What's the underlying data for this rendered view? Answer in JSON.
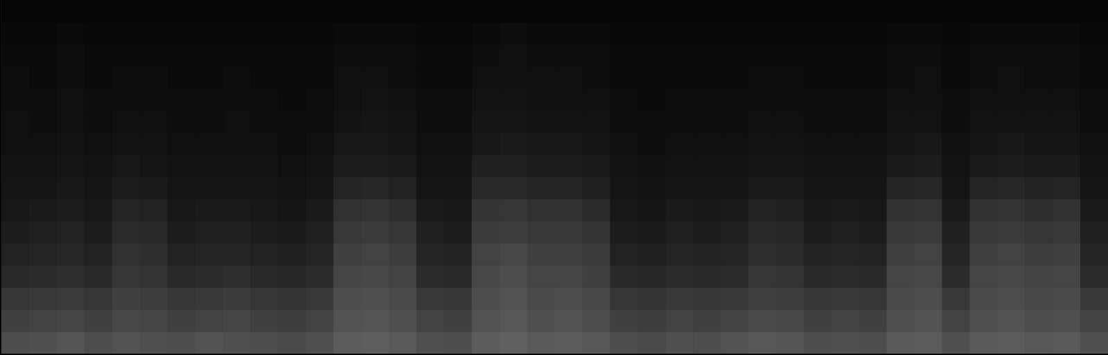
{
  "chart_data": {
    "type": "heatmap",
    "xlim": [
      0,
      40
    ],
    "ylim": [
      0,
      16
    ],
    "zlim": [
      0,
      1
    ],
    "color": "#ffffff",
    "grid": false,
    "tick_labels": false,
    "cells": [
      [
        0.3,
        0.31,
        0.33,
        0.3,
        0.32,
        0.31,
        0.3,
        0.32,
        0.31,
        0.3,
        0.29,
        0.31,
        0.36,
        0.37,
        0.35,
        0.31,
        0.3,
        0.36,
        0.38,
        0.35,
        0.36,
        0.34,
        0.3,
        0.29,
        0.31,
        0.3,
        0.32,
        0.34,
        0.33,
        0.3,
        0.31,
        0.3,
        0.35,
        0.36,
        0.31,
        0.35,
        0.36,
        0.34,
        0.35,
        0.31
      ],
      [
        0.25,
        0.26,
        0.27,
        0.25,
        0.28,
        0.27,
        0.25,
        0.26,
        0.27,
        0.25,
        0.24,
        0.26,
        0.32,
        0.33,
        0.31,
        0.26,
        0.25,
        0.32,
        0.34,
        0.31,
        0.32,
        0.3,
        0.25,
        0.24,
        0.26,
        0.25,
        0.26,
        0.29,
        0.28,
        0.25,
        0.26,
        0.25,
        0.31,
        0.32,
        0.26,
        0.31,
        0.32,
        0.3,
        0.31,
        0.26
      ],
      [
        0.21,
        0.22,
        0.23,
        0.21,
        0.25,
        0.24,
        0.21,
        0.22,
        0.23,
        0.21,
        0.2,
        0.22,
        0.3,
        0.31,
        0.29,
        0.22,
        0.21,
        0.3,
        0.32,
        0.29,
        0.3,
        0.28,
        0.21,
        0.2,
        0.22,
        0.21,
        0.22,
        0.25,
        0.24,
        0.21,
        0.22,
        0.21,
        0.29,
        0.3,
        0.22,
        0.29,
        0.3,
        0.28,
        0.29,
        0.22
      ],
      [
        0.16,
        0.17,
        0.18,
        0.16,
        0.21,
        0.2,
        0.16,
        0.17,
        0.18,
        0.16,
        0.15,
        0.17,
        0.27,
        0.28,
        0.26,
        0.17,
        0.16,
        0.28,
        0.3,
        0.27,
        0.27,
        0.25,
        0.16,
        0.15,
        0.17,
        0.16,
        0.17,
        0.21,
        0.2,
        0.16,
        0.17,
        0.16,
        0.27,
        0.28,
        0.17,
        0.27,
        0.28,
        0.26,
        0.27,
        0.17
      ],
      [
        0.13,
        0.14,
        0.15,
        0.13,
        0.19,
        0.18,
        0.13,
        0.14,
        0.14,
        0.13,
        0.12,
        0.14,
        0.25,
        0.26,
        0.24,
        0.14,
        0.13,
        0.26,
        0.28,
        0.25,
        0.25,
        0.23,
        0.13,
        0.12,
        0.14,
        0.13,
        0.14,
        0.18,
        0.17,
        0.13,
        0.14,
        0.13,
        0.25,
        0.26,
        0.14,
        0.25,
        0.26,
        0.24,
        0.25,
        0.14
      ],
      [
        0.11,
        0.12,
        0.13,
        0.11,
        0.17,
        0.16,
        0.11,
        0.12,
        0.12,
        0.11,
        0.1,
        0.12,
        0.22,
        0.23,
        0.21,
        0.12,
        0.11,
        0.23,
        0.24,
        0.22,
        0.22,
        0.2,
        0.11,
        0.1,
        0.12,
        0.11,
        0.12,
        0.16,
        0.15,
        0.11,
        0.12,
        0.11,
        0.22,
        0.23,
        0.12,
        0.22,
        0.23,
        0.21,
        0.22,
        0.12
      ],
      [
        0.09,
        0.1,
        0.11,
        0.09,
        0.14,
        0.13,
        0.09,
        0.1,
        0.1,
        0.09,
        0.08,
        0.1,
        0.19,
        0.2,
        0.18,
        0.1,
        0.09,
        0.2,
        0.21,
        0.19,
        0.19,
        0.17,
        0.09,
        0.08,
        0.1,
        0.09,
        0.1,
        0.13,
        0.12,
        0.09,
        0.1,
        0.09,
        0.19,
        0.2,
        0.1,
        0.19,
        0.2,
        0.18,
        0.19,
        0.1
      ],
      [
        0.08,
        0.08,
        0.09,
        0.08,
        0.11,
        0.1,
        0.08,
        0.08,
        0.08,
        0.08,
        0.07,
        0.08,
        0.14,
        0.15,
        0.13,
        0.08,
        0.08,
        0.16,
        0.16,
        0.14,
        0.14,
        0.12,
        0.08,
        0.07,
        0.08,
        0.08,
        0.08,
        0.1,
        0.1,
        0.08,
        0.08,
        0.08,
        0.14,
        0.15,
        0.08,
        0.14,
        0.15,
        0.13,
        0.14,
        0.08
      ],
      [
        0.07,
        0.07,
        0.08,
        0.07,
        0.09,
        0.08,
        0.07,
        0.07,
        0.07,
        0.07,
        0.06,
        0.07,
        0.11,
        0.11,
        0.1,
        0.07,
        0.07,
        0.12,
        0.12,
        0.11,
        0.11,
        0.1,
        0.07,
        0.06,
        0.07,
        0.07,
        0.07,
        0.08,
        0.08,
        0.07,
        0.07,
        0.07,
        0.1,
        0.11,
        0.07,
        0.1,
        0.11,
        0.1,
        0.1,
        0.07
      ],
      [
        0.06,
        0.06,
        0.07,
        0.06,
        0.07,
        0.07,
        0.06,
        0.06,
        0.06,
        0.06,
        0.05,
        0.06,
        0.09,
        0.09,
        0.08,
        0.06,
        0.06,
        0.09,
        0.1,
        0.09,
        0.09,
        0.08,
        0.06,
        0.05,
        0.06,
        0.06,
        0.06,
        0.07,
        0.07,
        0.06,
        0.06,
        0.06,
        0.08,
        0.09,
        0.06,
        0.08,
        0.09,
        0.08,
        0.08,
        0.06
      ],
      [
        0.06,
        0.05,
        0.06,
        0.05,
        0.06,
        0.06,
        0.05,
        0.05,
        0.06,
        0.05,
        0.05,
        0.05,
        0.07,
        0.08,
        0.07,
        0.05,
        0.05,
        0.08,
        0.08,
        0.07,
        0.07,
        0.07,
        0.05,
        0.05,
        0.05,
        0.05,
        0.05,
        0.06,
        0.06,
        0.05,
        0.05,
        0.05,
        0.07,
        0.07,
        0.05,
        0.07,
        0.07,
        0.07,
        0.07,
        0.05
      ],
      [
        0.05,
        0.05,
        0.06,
        0.05,
        0.05,
        0.05,
        0.05,
        0.05,
        0.05,
        0.05,
        0.04,
        0.05,
        0.06,
        0.07,
        0.06,
        0.05,
        0.05,
        0.07,
        0.07,
        0.06,
        0.06,
        0.06,
        0.05,
        0.04,
        0.05,
        0.05,
        0.05,
        0.05,
        0.05,
        0.05,
        0.05,
        0.05,
        0.06,
        0.06,
        0.05,
        0.06,
        0.06,
        0.06,
        0.06,
        0.05
      ],
      [
        0.05,
        0.04,
        0.05,
        0.04,
        0.05,
        0.05,
        0.04,
        0.04,
        0.05,
        0.04,
        0.04,
        0.04,
        0.06,
        0.06,
        0.05,
        0.04,
        0.04,
        0.06,
        0.06,
        0.06,
        0.06,
        0.05,
        0.04,
        0.04,
        0.04,
        0.04,
        0.04,
        0.05,
        0.05,
        0.04,
        0.04,
        0.04,
        0.05,
        0.06,
        0.04,
        0.05,
        0.06,
        0.05,
        0.05,
        0.04
      ],
      [
        0.04,
        0.04,
        0.05,
        0.04,
        0.04,
        0.04,
        0.04,
        0.04,
        0.04,
        0.04,
        0.04,
        0.04,
        0.05,
        0.05,
        0.05,
        0.04,
        0.04,
        0.05,
        0.06,
        0.05,
        0.05,
        0.05,
        0.04,
        0.04,
        0.04,
        0.04,
        0.04,
        0.04,
        0.04,
        0.04,
        0.04,
        0.04,
        0.05,
        0.05,
        0.04,
        0.05,
        0.05,
        0.05,
        0.05,
        0.04
      ],
      [
        0.03,
        0.03,
        0.04,
        0.03,
        0.03,
        0.03,
        0.03,
        0.03,
        0.03,
        0.03,
        0.03,
        0.03,
        0.04,
        0.04,
        0.04,
        0.03,
        0.03,
        0.04,
        0.05,
        0.04,
        0.04,
        0.04,
        0.03,
        0.03,
        0.03,
        0.03,
        0.03,
        0.03,
        0.03,
        0.03,
        0.03,
        0.03,
        0.04,
        0.04,
        0.03,
        0.04,
        0.04,
        0.04,
        0.04,
        0.03
      ],
      [
        0.02,
        0.02,
        0.02,
        0.02,
        0.02,
        0.02,
        0.02,
        0.02,
        0.02,
        0.02,
        0.02,
        0.02,
        0.02,
        0.02,
        0.02,
        0.02,
        0.02,
        0.02,
        0.02,
        0.02,
        0.02,
        0.02,
        0.02,
        0.02,
        0.02,
        0.02,
        0.02,
        0.02,
        0.02,
        0.02,
        0.02,
        0.02,
        0.02,
        0.02,
        0.02,
        0.02,
        0.02,
        0.02,
        0.02,
        0.02
      ]
    ]
  }
}
